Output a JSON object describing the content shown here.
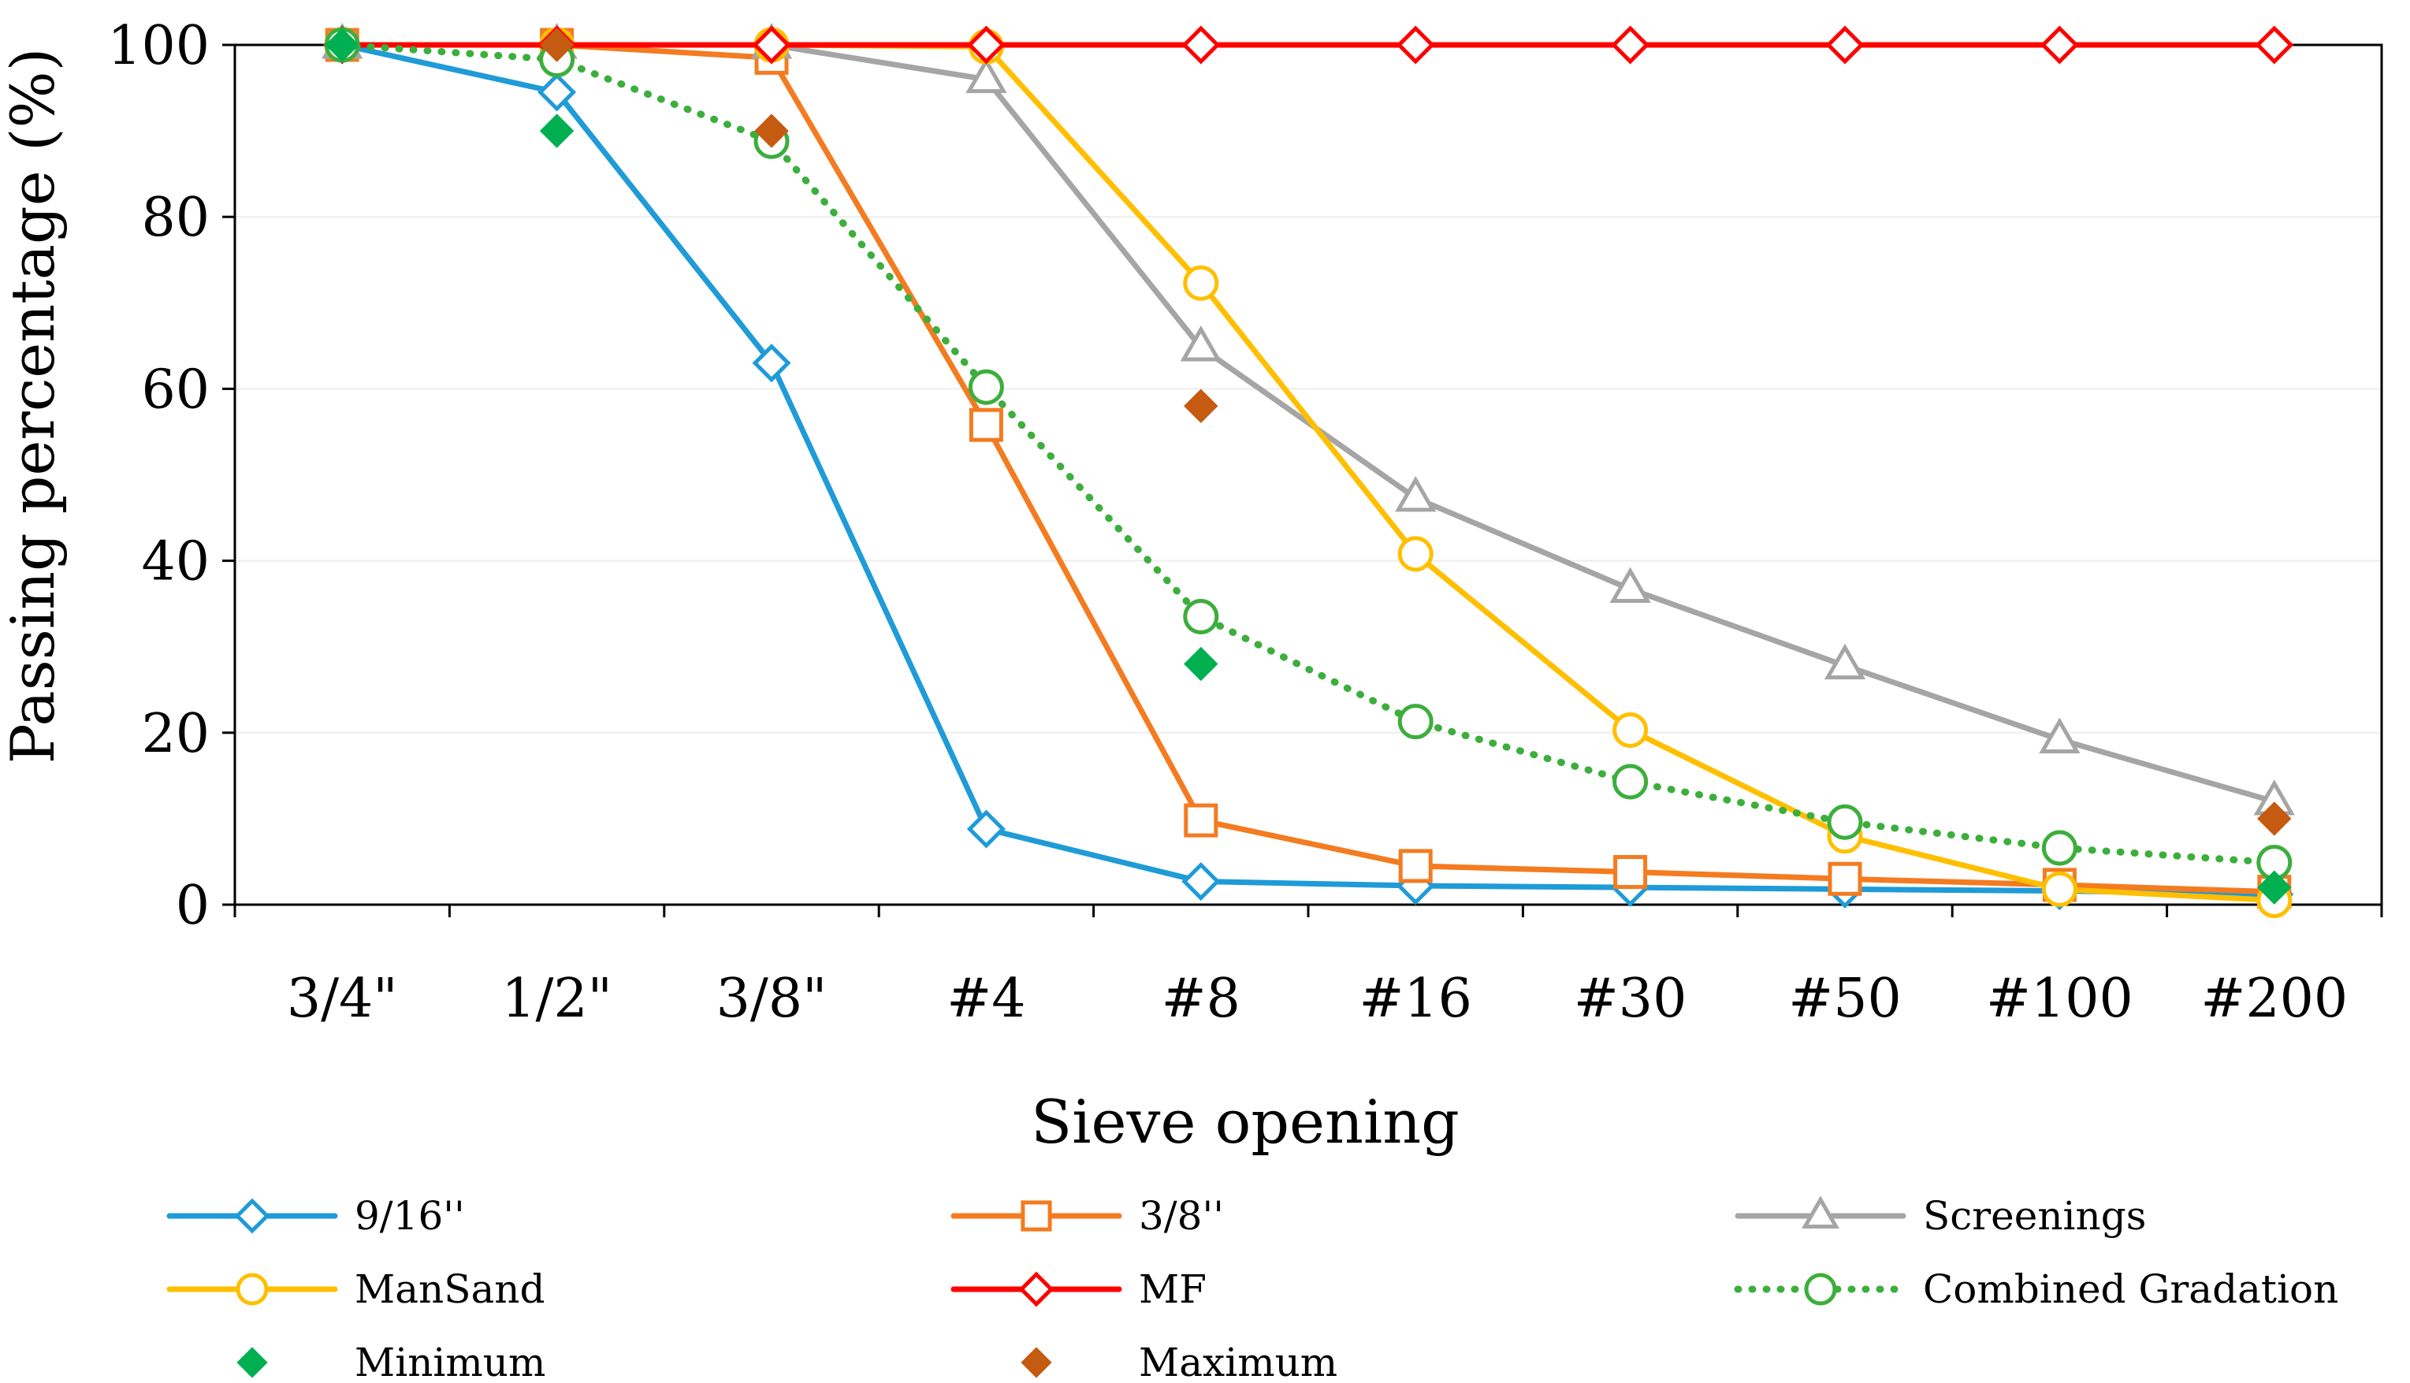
{
  "chart_data": {
    "type": "line",
    "title": "",
    "xlabel": "Sieve opening",
    "ylabel": "Passing percentage (%)",
    "categories": [
      "3/4\"",
      "1/2\"",
      "3/8\"",
      "#4",
      "#8",
      "#16",
      "#30",
      "#50",
      "#100",
      "#200"
    ],
    "ylim": [
      0,
      100
    ],
    "yticks": [
      0,
      20,
      40,
      60,
      80,
      100
    ],
    "grid": "horizontal",
    "legend_position": "bottom",
    "series": [
      {
        "name": "9/16''",
        "color": "#1f9bd7",
        "marker": "diamond-open",
        "line": "solid",
        "values": [
          100,
          94.5,
          63,
          8.8,
          2.7,
          2.2,
          2.0,
          1.8,
          1.6,
          1.2
        ]
      },
      {
        "name": "3/8''",
        "color": "#f47b20",
        "marker": "square-open",
        "line": "solid",
        "values": [
          100,
          100,
          98.5,
          55.8,
          9.8,
          4.5,
          3.8,
          3.0,
          2.3,
          1.5
        ]
      },
      {
        "name": "Screenings",
        "color": "#a5a5a5",
        "marker": "triangle-open",
        "line": "solid",
        "values": [
          100,
          100,
          100,
          96,
          64.8,
          47.3,
          36.7,
          27.8,
          19.2,
          12.0
        ]
      },
      {
        "name": "ManSand",
        "color": "#ffbf00",
        "marker": "circle-open",
        "line": "solid",
        "values": [
          100,
          100,
          100,
          99.8,
          72.3,
          40.8,
          20.3,
          8.0,
          1.8,
          0.5
        ]
      },
      {
        "name": "MF",
        "color": "#ff0000",
        "marker": "diamond-open",
        "line": "solid",
        "values": [
          100,
          100,
          100,
          100,
          100,
          100,
          100,
          100,
          100,
          100
        ]
      },
      {
        "name": "Combined Gradation",
        "color": "#3cae3c",
        "marker": "circle-open",
        "line": "dotted",
        "values": [
          100,
          98.3,
          88.8,
          60.2,
          33.5,
          21.3,
          14.3,
          9.6,
          6.6,
          4.9
        ]
      },
      {
        "name": "Minimum",
        "color": "#00b050",
        "marker": "diamond-filled",
        "line": "none",
        "values": [
          100,
          90,
          null,
          null,
          28,
          null,
          null,
          null,
          null,
          2
        ]
      },
      {
        "name": "Maximum",
        "color": "#c55a11",
        "marker": "diamond-filled",
        "line": "none",
        "values": [
          null,
          100,
          90,
          null,
          58,
          null,
          null,
          null,
          null,
          10
        ]
      }
    ]
  }
}
